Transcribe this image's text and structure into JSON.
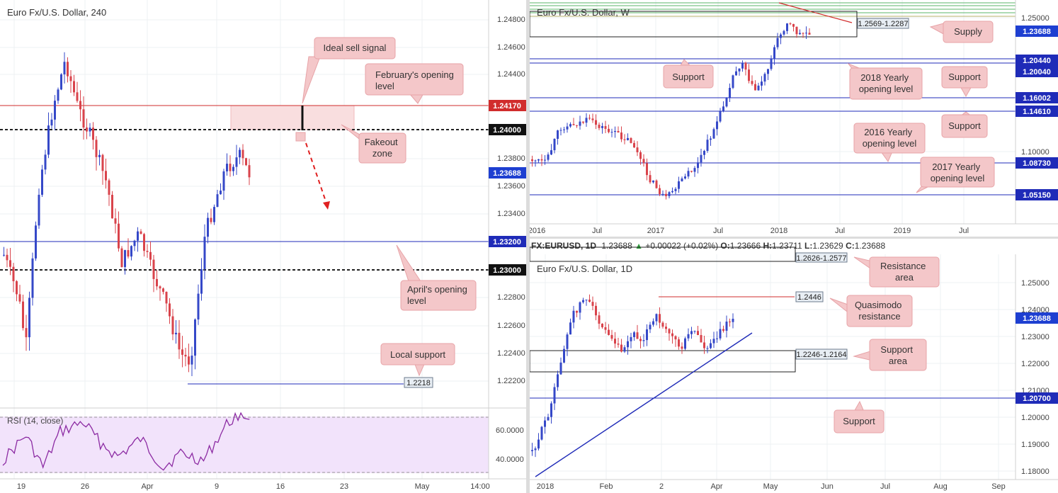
{
  "colors": {
    "bull": "#3548c8",
    "bear": "#d9434b",
    "callout": "#f4c7c9",
    "price_tag": "#1e3fd1",
    "level_blue": "#1f2bb8",
    "level_red": "#d12c2c",
    "rsi_line": "#8c2ba3",
    "rsi_band": "#f2e3fb"
  },
  "panels": {
    "h4": {
      "title": "Euro Fx/U.S. Dollar, 240",
      "current_price": "1.23688",
      "tags": [
        "1.24170",
        "1.24000",
        "1.23200",
        "1.23000"
      ],
      "axis_labels": [
        "1.24800",
        "1.24600",
        "1.24400",
        "1.23800",
        "1.23600",
        "1.23400",
        "1.22800",
        "1.22600",
        "1.22400",
        "1.22200"
      ],
      "rsi_title": "RSI (14, close)",
      "rsi_axis": [
        "60.0000",
        "40.0000"
      ],
      "x_labels": [
        "19",
        "26",
        "Apr",
        "9",
        "16",
        "23",
        "May",
        "14:00"
      ],
      "local_support_value": "1.2218",
      "callouts": {
        "ideal_sell": "Ideal sell signal",
        "feb_open": "February's opening level",
        "fakeout": "Fakeout zone",
        "april_open": "April's opening level",
        "local_support": "Local support"
      }
    },
    "weekly": {
      "title": "Euro Fx/U.S. Dollar, W",
      "current_price": "1.23688",
      "tags": [
        "1.20440",
        "1.20040",
        "1.16002",
        "1.14610",
        "1.08730",
        "1.05150"
      ],
      "axis_labels": [
        "1.25000",
        "1.10000"
      ],
      "x_labels": [
        "2016",
        "Jul",
        "2017",
        "Jul",
        "2018",
        "Jul",
        "2019",
        "Jul"
      ],
      "supply_range": "1.2569-1.2287",
      "callouts": {
        "supply": "Supply",
        "support_a": "Support",
        "yearly_2018": "2018 Yearly opening level",
        "support_b": "Support",
        "support_c": "Support",
        "yearly_2016": "2016 Yearly opening level",
        "yearly_2017": "2017 Yearly opening level"
      }
    },
    "daily": {
      "header": {
        "symbol": "FX:EURUSD, 1D",
        "last": "1.23688",
        "change": "+0.00022 (+0.02%)",
        "o_label": "O:",
        "o": "1.23666",
        "h_label": "H:",
        "h": "1.23711",
        "l_label": "L:",
        "l": "1.23629",
        "c_label": "C:",
        "c": "1.23688"
      },
      "title": "Euro Fx/U.S. Dollar, 1D",
      "current_price": "1.23688",
      "tag": "1.20700",
      "axis_labels": [
        "1.25000",
        "1.24000",
        "1.23000",
        "1.22000",
        "1.21000",
        "1.20000",
        "1.19000",
        "1.18000"
      ],
      "x_labels": [
        "2018",
        "Feb",
        "2",
        "Apr",
        "May",
        "Jun",
        "Jul",
        "Aug",
        "Sep"
      ],
      "resistance_range": "1.2626-1.2577",
      "qm_value": "1.2446",
      "support_range": "1.2246-1.2164",
      "callouts": {
        "resistance_area": "Resistance area",
        "qm": "Quasimodo resistance",
        "support_area": "Support area",
        "support": "Support"
      }
    }
  }
}
